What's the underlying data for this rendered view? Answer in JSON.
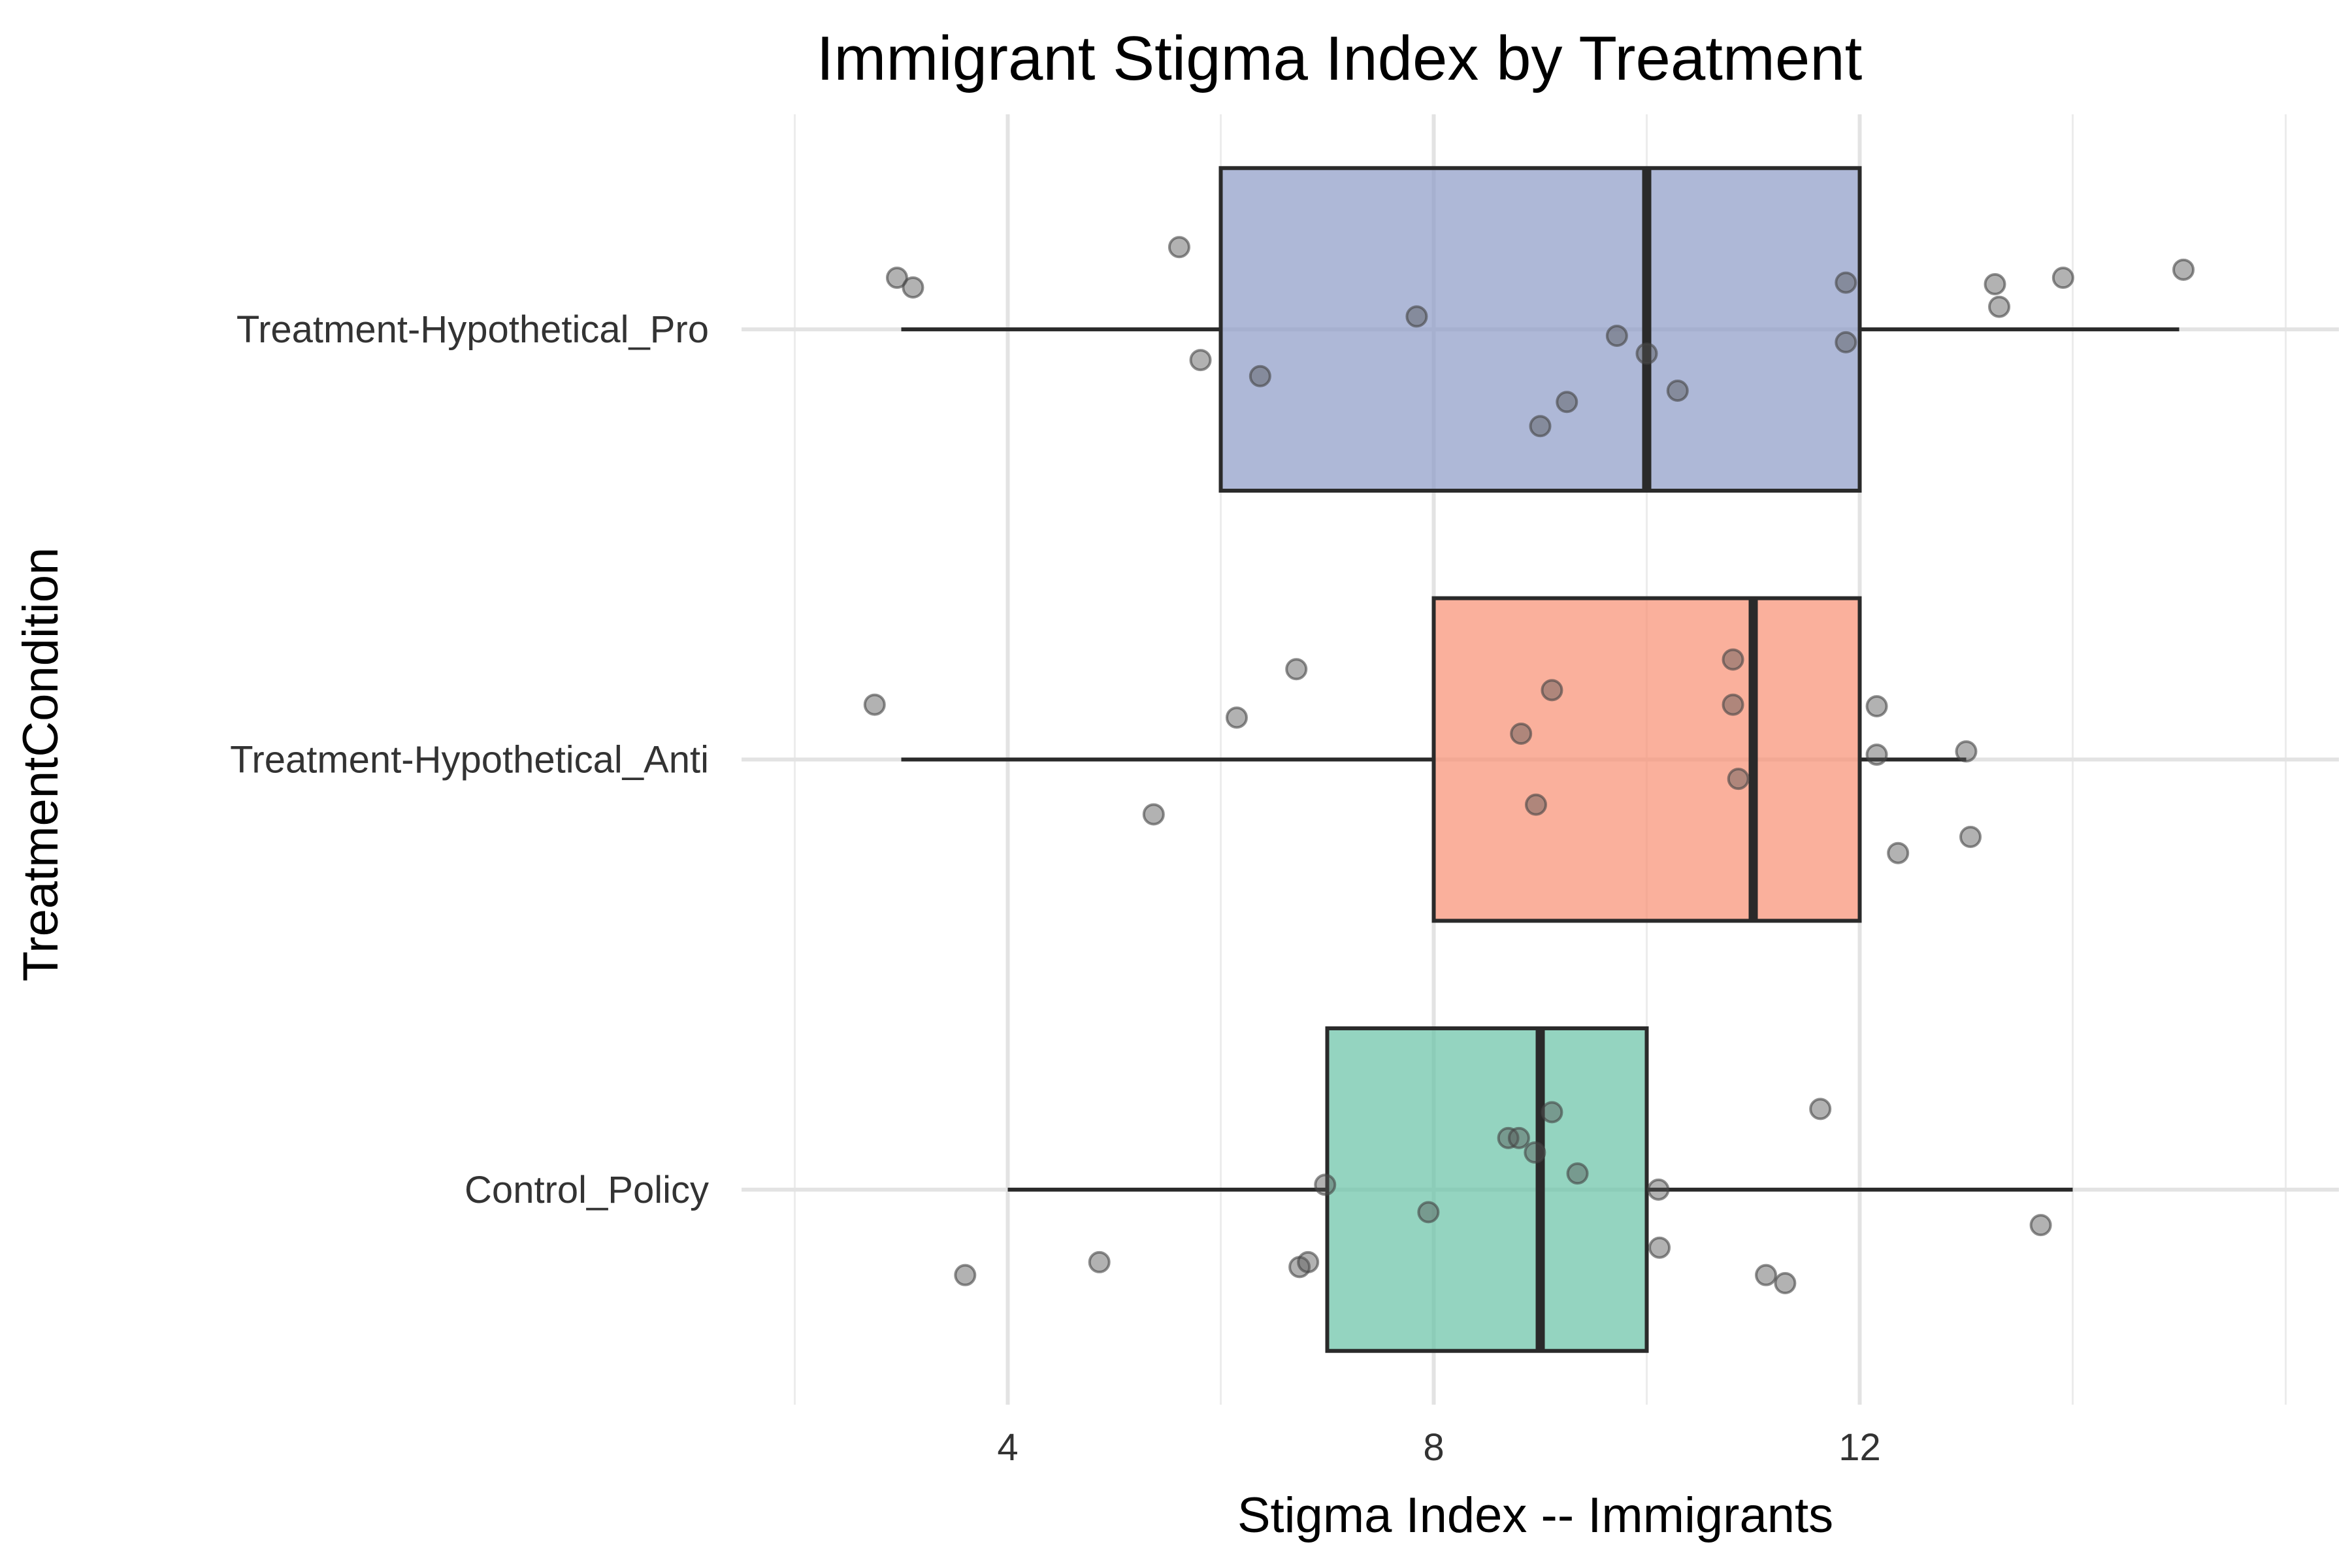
{
  "chart_data": {
    "type": "boxplot",
    "title": "Immigrant Stigma Index by Treatment",
    "xlabel": "Stigma Index -- Immigrants",
    "ylabel": "TreatmentCondition",
    "xlim": [
      1.5,
      16.5
    ],
    "xticks": [
      4,
      8,
      12
    ],
    "grid": true,
    "orientation": "horizontal",
    "categories": [
      "Treatment-Hypothetical_Pro",
      "Treatment-Hypothetical_Anti",
      "Control_Policy"
    ],
    "groups": [
      {
        "name": "Treatment-Hypothetical_Pro",
        "color": "#8c9ac6",
        "whisker_low": 3,
        "q1": 6,
        "median": 10,
        "q3": 12,
        "whisker_high": 15,
        "points": [
          [
            2.96,
            0.32
          ],
          [
            3.11,
            0.26
          ],
          [
            5.61,
            0.51
          ],
          [
            5.81,
            -0.19
          ],
          [
            6.37,
            -0.29
          ],
          [
            7.84,
            0.08
          ],
          [
            9.0,
            -0.6
          ],
          [
            9.25,
            -0.45
          ],
          [
            9.72,
            -0.04
          ],
          [
            10.0,
            -0.15
          ],
          [
            10.29,
            -0.38
          ],
          [
            11.87,
            0.29
          ],
          [
            11.87,
            -0.08
          ],
          [
            13.27,
            0.28
          ],
          [
            13.31,
            0.14
          ],
          [
            13.91,
            0.32
          ],
          [
            15.04,
            0.37
          ]
        ]
      },
      {
        "name": "Treatment-Hypothetical_Anti",
        "color": "#f88f72",
        "whisker_low": 3,
        "q1": 8,
        "median": 11,
        "q3": 12,
        "whisker_high": 13,
        "points": [
          [
            2.75,
            0.34
          ],
          [
            5.37,
            -0.34
          ],
          [
            6.15,
            0.26
          ],
          [
            6.71,
            0.56
          ],
          [
            8.82,
            0.16
          ],
          [
            8.96,
            -0.28
          ],
          [
            9.11,
            0.43
          ],
          [
            10.81,
            0.62
          ],
          [
            10.81,
            0.34
          ],
          [
            10.86,
            -0.12
          ],
          [
            12.16,
            0.33
          ],
          [
            12.16,
            0.03
          ],
          [
            12.36,
            -0.58
          ],
          [
            13.0,
            0.05
          ],
          [
            13.04,
            -0.48
          ]
        ]
      },
      {
        "name": "Control_Policy",
        "color": "#66c2a5",
        "whisker_low": 4,
        "q1": 7,
        "median": 9,
        "q3": 10,
        "whisker_high": 14,
        "points": [
          [
            3.6,
            -0.53
          ],
          [
            4.86,
            -0.45
          ],
          [
            6.74,
            -0.48
          ],
          [
            6.82,
            -0.45
          ],
          [
            6.98,
            0.03
          ],
          [
            7.95,
            -0.14
          ],
          [
            8.7,
            0.32
          ],
          [
            8.8,
            0.32
          ],
          [
            8.95,
            0.23
          ],
          [
            9.11,
            0.48
          ],
          [
            9.35,
            0.1
          ],
          [
            10.11,
            0.0
          ],
          [
            10.12,
            -0.36
          ],
          [
            11.12,
            -0.53
          ],
          [
            11.3,
            -0.58
          ],
          [
            11.63,
            0.5
          ],
          [
            13.7,
            -0.22
          ]
        ]
      }
    ]
  }
}
